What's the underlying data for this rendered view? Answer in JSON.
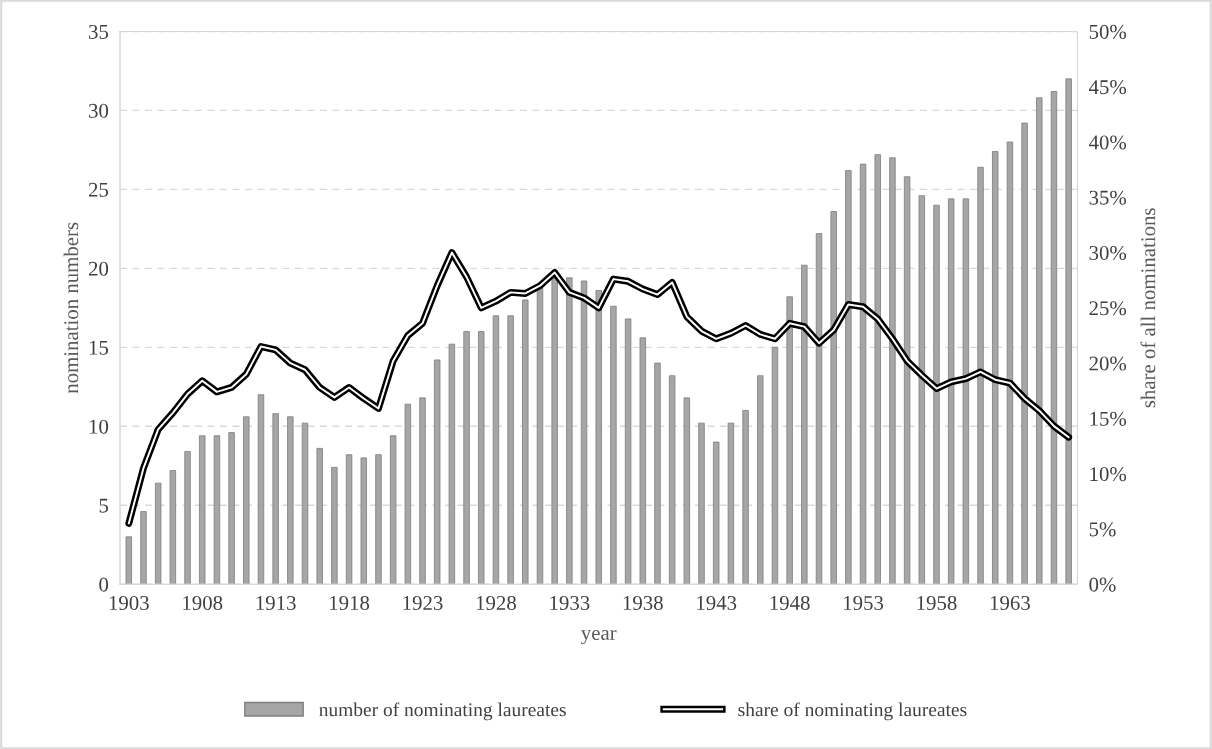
{
  "chart_data": {
    "type": "bar",
    "xlabel": "year",
    "ylabel": "nomination numbers",
    "y2label": "share of all nominations",
    "categories": [
      "1903",
      null,
      null,
      null,
      null,
      "1908",
      null,
      null,
      null,
      null,
      "1913",
      null,
      null,
      null,
      null,
      "1918",
      null,
      null,
      null,
      null,
      "1923",
      null,
      null,
      null,
      null,
      "1928",
      null,
      null,
      null,
      null,
      "1933",
      null,
      null,
      null,
      null,
      "1938",
      null,
      null,
      null,
      null,
      "1943",
      null,
      null,
      null,
      null,
      "1948",
      null,
      null,
      null,
      null,
      "1953",
      null,
      null,
      null,
      null,
      "1958",
      null,
      null,
      null,
      null,
      "1963",
      null,
      null,
      null,
      null
    ],
    "series": [
      {
        "name": "number of nominating laureates",
        "color": "#a6a6a6",
        "values": [
          3.0,
          4.6,
          6.4,
          7.2,
          8.4,
          9.4,
          9.4,
          9.6,
          10.6,
          12.0,
          10.8,
          10.6,
          10.2,
          8.6,
          7.4,
          8.2,
          8.0,
          8.2,
          9.4,
          11.4,
          11.8,
          14.2,
          15.2,
          16.0,
          16.0,
          17.0,
          17.0,
          18.0,
          19.0,
          19.4,
          19.4,
          19.2,
          18.6,
          17.6,
          16.8,
          15.6,
          14.0,
          13.2,
          11.8,
          10.2,
          9.0,
          10.2,
          11.0,
          13.2,
          15.0,
          18.2,
          20.2,
          22.2,
          23.6,
          26.2,
          26.6,
          27.2,
          27.0,
          25.8,
          24.6,
          24.0,
          24.4,
          24.4,
          26.4,
          27.4,
          28.0,
          29.2,
          30.8,
          31.2,
          32.0
        ]
      },
      {
        "name": "share of nominating laureates",
        "type": "line",
        "axis": "y2",
        "color": "#000000",
        "values": [
          5.5,
          10.5,
          14.0,
          15.5,
          17.2,
          18.4,
          17.4,
          17.8,
          19.0,
          21.5,
          21.2,
          20.0,
          19.4,
          17.8,
          16.9,
          17.8,
          16.8,
          15.9,
          20.2,
          22.5,
          23.6,
          27.0,
          30.0,
          27.8,
          25.0,
          25.6,
          26.4,
          26.3,
          27.0,
          28.2,
          26.4,
          25.9,
          25.0,
          27.6,
          27.4,
          26.7,
          26.2,
          27.3,
          24.2,
          22.9,
          22.2,
          22.7,
          23.4,
          22.6,
          22.2,
          23.6,
          23.3,
          21.8,
          23.0,
          25.3,
          25.1,
          24.0,
          22.2,
          20.2,
          18.9,
          17.7,
          18.3,
          18.6,
          19.2,
          18.5,
          18.2,
          16.8,
          15.7,
          14.3,
          13.3
        ]
      }
    ],
    "ylim": [
      0,
      35
    ],
    "yticks": [
      0,
      5,
      10,
      15,
      20,
      25,
      30,
      35
    ],
    "y2lim": [
      0,
      50
    ],
    "y2ticks": [
      {
        "value": 0,
        "label": "0%"
      },
      {
        "value": 5,
        "label": "5%"
      },
      {
        "value": 10,
        "label": "10%"
      },
      {
        "value": 15,
        "label": "15%"
      },
      {
        "value": 20,
        "label": "20%"
      },
      {
        "value": 25,
        "label": "25%"
      },
      {
        "value": 30,
        "label": "30%"
      },
      {
        "value": 35,
        "label": "35%"
      },
      {
        "value": 40,
        "label": "40%"
      },
      {
        "value": 45,
        "label": "45%"
      },
      {
        "value": 50,
        "label": "50%"
      }
    ],
    "grid": "y",
    "legend": "bottom",
    "marker": "none",
    "line_style": "solid"
  }
}
